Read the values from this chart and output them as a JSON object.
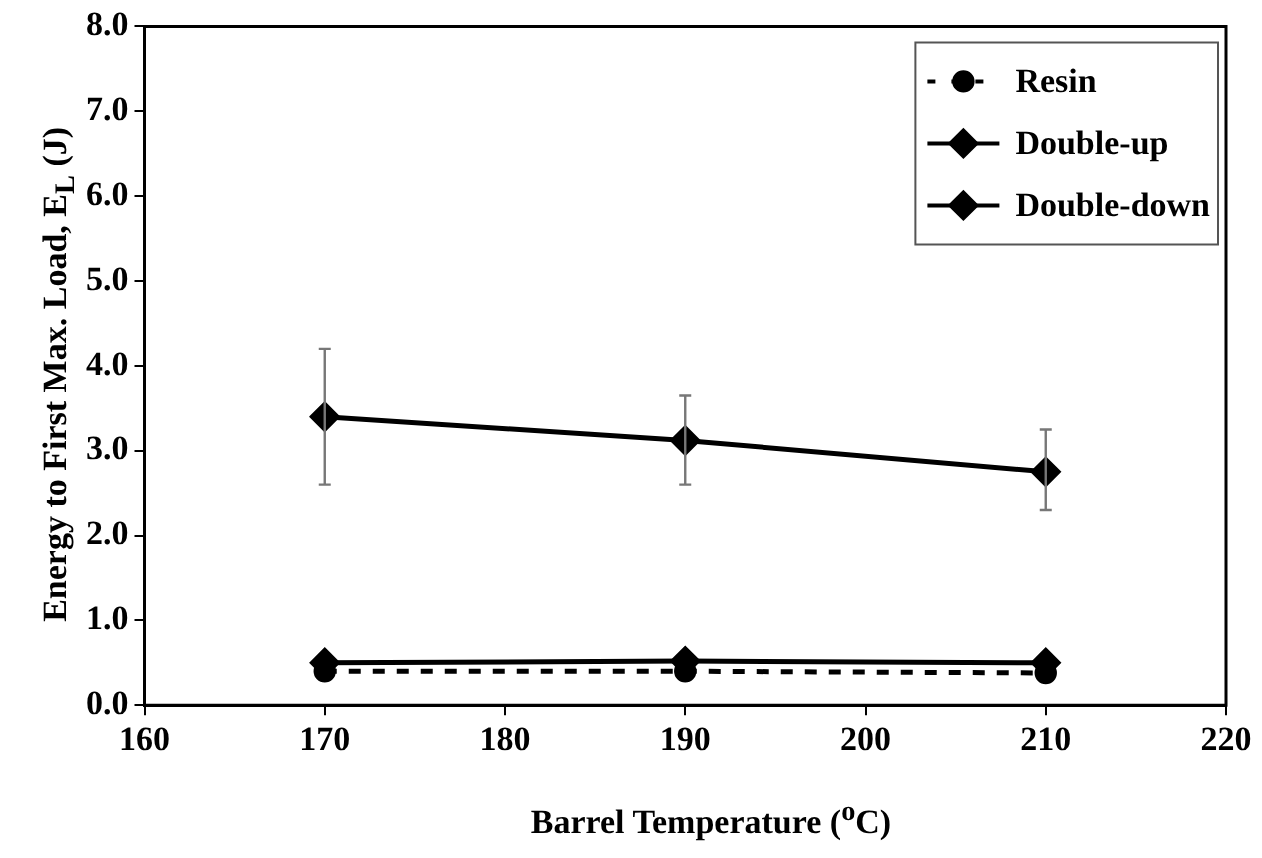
{
  "chart_data": {
    "type": "line",
    "xlabel": "Barrel Temperature ($^{o}$C)",
    "ylabel": "Energy to First Max. Load, E$_{L}$ (J)",
    "x": [
      170,
      190,
      210
    ],
    "xlim": [
      160,
      220
    ],
    "xticks": [
      {
        "value": 160,
        "label": "160"
      },
      {
        "value": 170,
        "label": "170"
      },
      {
        "value": 180,
        "label": "180"
      },
      {
        "value": 190,
        "label": "190"
      },
      {
        "value": 200,
        "label": "200"
      },
      {
        "value": 210,
        "label": "210"
      },
      {
        "value": 220,
        "label": "220"
      }
    ],
    "ylim": [
      0,
      8
    ],
    "yticks": [
      {
        "value": 0,
        "label": "0.0"
      },
      {
        "value": 1,
        "label": "1.0"
      },
      {
        "value": 2,
        "label": "2.0"
      },
      {
        "value": 3,
        "label": "3.0"
      },
      {
        "value": 4,
        "label": "4.0"
      },
      {
        "value": 5,
        "label": "5.0"
      },
      {
        "value": 6,
        "label": "6.0"
      },
      {
        "value": 7,
        "label": "7.0"
      },
      {
        "value": 8,
        "label": "8.0"
      }
    ],
    "grid": false,
    "legend": "top right",
    "series": [
      {
        "name": "Resin",
        "color": "#000000",
        "values": [
          0.4,
          0.4,
          0.38
        ],
        "marker": "circle",
        "line_style": "dashed"
      },
      {
        "name": "Double-up",
        "color": "#000000",
        "values": [
          0.5,
          0.52,
          0.5
        ],
        "marker": "diamond",
        "line_style": "solid"
      },
      {
        "name": "Double-down",
        "color": "#000000",
        "values": [
          3.4,
          3.12,
          2.75
        ],
        "errors": [
          [
            2.6,
            4.2
          ],
          [
            2.6,
            3.65
          ],
          [
            2.3,
            3.25
          ]
        ],
        "marker": "diamond",
        "line_style": "solid"
      }
    ]
  }
}
